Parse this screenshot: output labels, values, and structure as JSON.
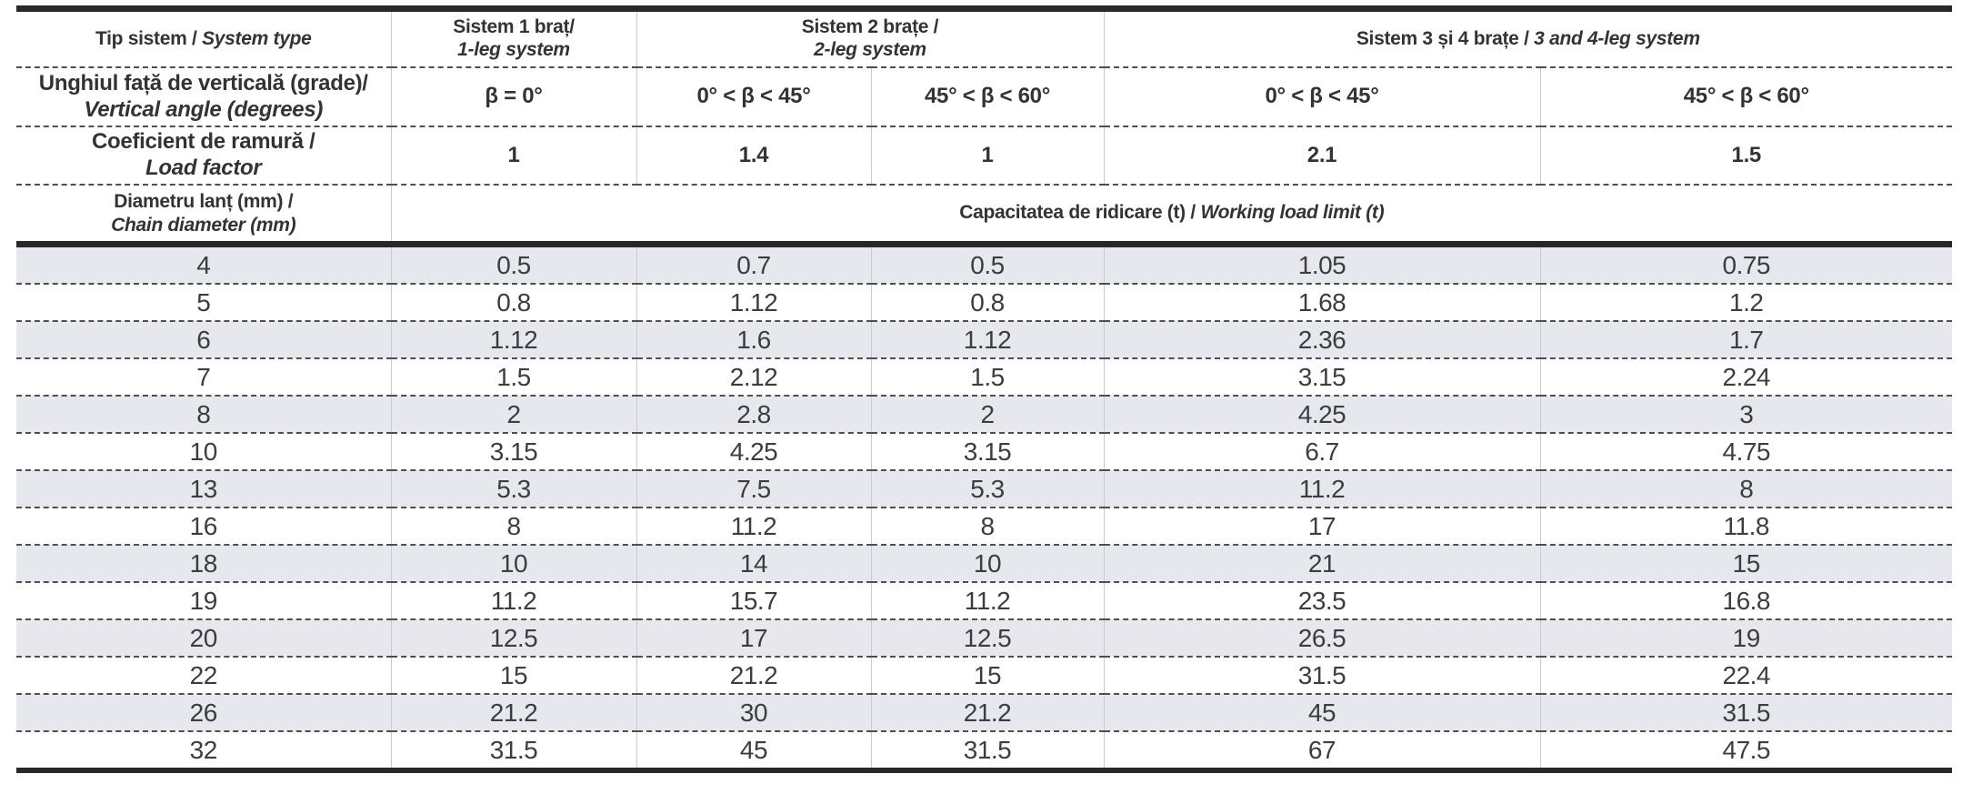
{
  "header": {
    "system_type": {
      "ro": "Tip sistem / ",
      "en": "System type"
    },
    "leg1": {
      "ro": "Sistem 1 braț/",
      "en": "1-leg system"
    },
    "leg2": {
      "ro": "Sistem 2 brațe /",
      "en": "2-leg system"
    },
    "leg34": {
      "ro": "Sistem 3 și 4 brațe / ",
      "en": "3 and 4-leg system"
    },
    "vertical_angle": {
      "ro": "Unghiul față de verticală (grade)/",
      "en": "Vertical angle (degrees)"
    },
    "angles": [
      "β = 0°",
      "0° < β < 45°",
      "45° < β < 60°",
      "0° < β < 45°",
      "45° < β < 60°"
    ],
    "load_factor": {
      "ro": "Coeficient de ramură /",
      "en": "Load factor"
    },
    "load_factors": [
      "1",
      "1.4",
      "1",
      "2.1",
      "1.5"
    ],
    "chain_diameter": {
      "ro": "Diametru lanț (mm) /",
      "en": "Chain diameter (mm)"
    },
    "wll": {
      "ro": "Capacitatea de ridicare (t) / ",
      "en": "Working load limit (t)"
    }
  },
  "rows": [
    {
      "diameter": "4",
      "values": [
        "0.5",
        "0.7",
        "0.5",
        "1.05",
        "0.75"
      ]
    },
    {
      "diameter": "5",
      "values": [
        "0.8",
        "1.12",
        "0.8",
        "1.68",
        "1.2"
      ]
    },
    {
      "diameter": "6",
      "values": [
        "1.12",
        "1.6",
        "1.12",
        "2.36",
        "1.7"
      ]
    },
    {
      "diameter": "7",
      "values": [
        "1.5",
        "2.12",
        "1.5",
        "3.15",
        "2.24"
      ]
    },
    {
      "diameter": "8",
      "values": [
        "2",
        "2.8",
        "2",
        "4.25",
        "3"
      ]
    },
    {
      "diameter": "10",
      "values": [
        "3.15",
        "4.25",
        "3.15",
        "6.7",
        "4.75"
      ]
    },
    {
      "diameter": "13",
      "values": [
        "5.3",
        "7.5",
        "5.3",
        "11.2",
        "8"
      ]
    },
    {
      "diameter": "16",
      "values": [
        "8",
        "11.2",
        "8",
        "17",
        "11.8"
      ]
    },
    {
      "diameter": "18",
      "values": [
        "10",
        "14",
        "10",
        "21",
        "15"
      ]
    },
    {
      "diameter": "19",
      "values": [
        "11.2",
        "15.7",
        "11.2",
        "23.5",
        "16.8"
      ]
    },
    {
      "diameter": "20",
      "values": [
        "12.5",
        "17",
        "12.5",
        "26.5",
        "19"
      ]
    },
    {
      "diameter": "22",
      "values": [
        "15",
        "21.2",
        "15",
        "31.5",
        "22.4"
      ]
    },
    {
      "diameter": "26",
      "values": [
        "21.2",
        "30",
        "21.2",
        "45",
        "31.5"
      ]
    },
    {
      "diameter": "32",
      "values": [
        "31.5",
        "45",
        "31.5",
        "67",
        "47.5"
      ]
    }
  ],
  "colors": {
    "row_stripe": "#e7e7ee",
    "heavy_border": "#282828",
    "dashed_separator": "#4f4f4f",
    "vertical_divider": "#c9cad3",
    "text": "#333333"
  },
  "chart_data": {
    "type": "table",
    "title": "Capacitatea de ridicare (t) / Working load limit (t)",
    "column_groups": [
      "Sistem 1 braț/ 1-leg system",
      "Sistem 2 brațe / 2-leg system",
      "Sistem 2 brațe / 2-leg system",
      "Sistem 3 și 4 brațe / 3 and 4-leg system",
      "Sistem 3 și 4 brațe / 3 and 4-leg system"
    ],
    "angle_columns": [
      "β = 0°",
      "0° < β < 45°",
      "45° < β < 60°",
      "0° < β < 45°",
      "45° < β < 60°"
    ],
    "load_factors": [
      1,
      1.4,
      1,
      2.1,
      1.5
    ],
    "chain_diameters_mm": [
      4,
      5,
      6,
      7,
      8,
      10,
      13,
      16,
      18,
      19,
      20,
      22,
      26,
      32
    ],
    "wll_t": [
      [
        0.5,
        0.7,
        0.5,
        1.05,
        0.75
      ],
      [
        0.8,
        1.12,
        0.8,
        1.68,
        1.2
      ],
      [
        1.12,
        1.6,
        1.12,
        2.36,
        1.7
      ],
      [
        1.5,
        2.12,
        1.5,
        3.15,
        2.24
      ],
      [
        2,
        2.8,
        2,
        4.25,
        3
      ],
      [
        3.15,
        4.25,
        3.15,
        6.7,
        4.75
      ],
      [
        5.3,
        7.5,
        5.3,
        11.2,
        8
      ],
      [
        8,
        11.2,
        8,
        17,
        11.8
      ],
      [
        10,
        14,
        10,
        21,
        15
      ],
      [
        11.2,
        15.7,
        11.2,
        23.5,
        16.8
      ],
      [
        12.5,
        17,
        12.5,
        26.5,
        19
      ],
      [
        15,
        21.2,
        15,
        31.5,
        22.4
      ],
      [
        21.2,
        30,
        21.2,
        45,
        31.5
      ],
      [
        31.5,
        45,
        31.5,
        67,
        47.5
      ]
    ]
  }
}
